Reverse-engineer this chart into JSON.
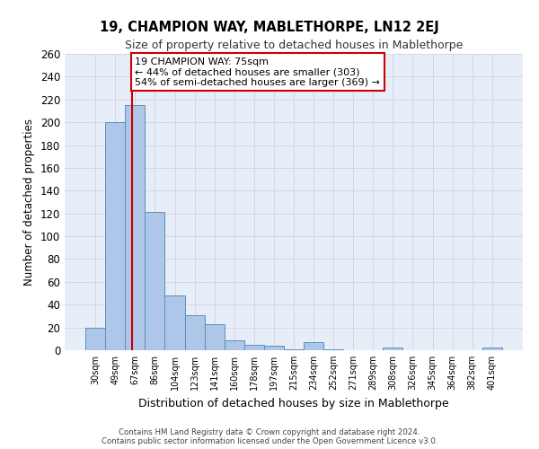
{
  "title": "19, CHAMPION WAY, MABLETHORPE, LN12 2EJ",
  "subtitle": "Size of property relative to detached houses in Mablethorpe",
  "xlabel": "Distribution of detached houses by size in Mablethorpe",
  "ylabel": "Number of detached properties",
  "categories": [
    "30sqm",
    "49sqm",
    "67sqm",
    "86sqm",
    "104sqm",
    "123sqm",
    "141sqm",
    "160sqm",
    "178sqm",
    "197sqm",
    "215sqm",
    "234sqm",
    "252sqm",
    "271sqm",
    "289sqm",
    "308sqm",
    "326sqm",
    "345sqm",
    "364sqm",
    "382sqm",
    "401sqm"
  ],
  "values": [
    20,
    200,
    215,
    121,
    48,
    31,
    23,
    9,
    5,
    4,
    1,
    7,
    1,
    0,
    0,
    2,
    0,
    0,
    0,
    0,
    2
  ],
  "bar_color": "#aec6e8",
  "bar_edge_color": "#5a8fc0",
  "grid_color": "#d0d8e8",
  "background_color": "#e8eef8",
  "property_line_x": 1.85,
  "annotation_text_line1": "19 CHAMPION WAY: 75sqm",
  "annotation_text_line2": "← 44% of detached houses are smaller (303)",
  "annotation_text_line3": "54% of semi-detached houses are larger (369) →",
  "annotation_box_color": "#ffffff",
  "annotation_box_edge": "#cc0000",
  "ymax": 260,
  "footnote1": "Contains HM Land Registry data © Crown copyright and database right 2024.",
  "footnote2": "Contains public sector information licensed under the Open Government Licence v3.0."
}
